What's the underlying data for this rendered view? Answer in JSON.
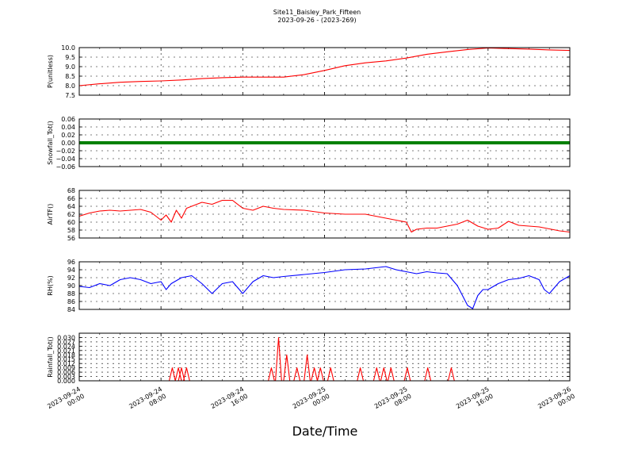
{
  "figure": {
    "title": "Site11_Baisley_Park_Fifteen",
    "subtitle": "2023-09-26 - (2023-269)",
    "xlabel": "Date/Time"
  },
  "x_ticks": [
    "2023-09-24 00:00",
    "2023-09-24 08:00",
    "2023-09-24 16:00",
    "2023-09-25 00:00",
    "2023-09-25 08:00",
    "2023-09-25 16:00",
    "2023-09-26 00:00"
  ],
  "chart_data": [
    {
      "type": "line",
      "ylabel": "P(unitless)",
      "ylim": [
        7.5,
        10.0
      ],
      "yticks": [
        "7.5",
        "8.0",
        "8.5",
        "9.0",
        "9.5",
        "10.0"
      ],
      "grid": true,
      "color": "#ff0000",
      "x_hours": [
        0,
        2,
        4,
        6,
        8,
        10,
        12,
        14,
        16,
        18,
        20,
        22,
        24,
        26,
        28,
        30,
        32,
        34,
        36,
        38,
        40,
        42,
        44,
        46,
        48
      ],
      "values": [
        8.0,
        8.1,
        8.18,
        8.22,
        8.25,
        8.3,
        8.37,
        8.42,
        8.45,
        8.45,
        8.45,
        8.58,
        8.8,
        9.05,
        9.2,
        9.3,
        9.45,
        9.65,
        9.78,
        9.9,
        9.98,
        9.95,
        9.92,
        9.88,
        9.85
      ]
    },
    {
      "type": "line",
      "ylabel": "Snowfall_Tot()",
      "ylim": [
        -0.06,
        0.06
      ],
      "yticks": [
        "−0.06",
        "−0.04",
        "−0.02",
        "0.00",
        "0.02",
        "0.04",
        "0.06"
      ],
      "grid": true,
      "color": "#008000",
      "x_hours": [
        0,
        48
      ],
      "values": [
        0.0,
        0.0
      ]
    },
    {
      "type": "line",
      "ylabel": "AirTF()",
      "ylim": [
        56,
        68
      ],
      "yticks": [
        "56",
        "58",
        "60",
        "62",
        "64",
        "66",
        "68"
      ],
      "grid": true,
      "color": "#ff0000",
      "x_hours": [
        0,
        1,
        2,
        3,
        4,
        5,
        6,
        7,
        8,
        8.5,
        9,
        9.5,
        10,
        10.5,
        11,
        12,
        13,
        14,
        15,
        16,
        17,
        18,
        19,
        20,
        22,
        24,
        26,
        28,
        30,
        31,
        32,
        32.5,
        33,
        34,
        35,
        36,
        37,
        38,
        39,
        40,
        41,
        42,
        43,
        44,
        45,
        46,
        47,
        48
      ],
      "values": [
        61.5,
        62.3,
        62.8,
        63.0,
        62.8,
        63.0,
        63.2,
        62.5,
        60.5,
        61.8,
        60.0,
        63.0,
        61.0,
        63.5,
        64.0,
        65.0,
        64.5,
        65.5,
        65.5,
        63.5,
        63.0,
        64.0,
        63.5,
        63.2,
        63.0,
        62.3,
        62.0,
        62.0,
        61.0,
        60.5,
        60.0,
        57.5,
        58.2,
        58.5,
        58.5,
        59.0,
        59.5,
        60.5,
        59.0,
        58.2,
        58.5,
        60.2,
        59.2,
        59.0,
        58.8,
        58.3,
        57.8,
        57.5
      ]
    },
    {
      "type": "line",
      "ylabel": "RH(%)",
      "ylim": [
        84,
        96
      ],
      "yticks": [
        "84",
        "86",
        "88",
        "90",
        "92",
        "94",
        "96"
      ],
      "grid": true,
      "color": "#0000ff",
      "x_hours": [
        0,
        1,
        2,
        3,
        4,
        5,
        6,
        7,
        8,
        8.5,
        9,
        10,
        11,
        12,
        13,
        14,
        15,
        16,
        17,
        18,
        19,
        20,
        22,
        24,
        26,
        28,
        30,
        31,
        32,
        33,
        34,
        35,
        36,
        37,
        38,
        38.5,
        39,
        39.5,
        40,
        41,
        42,
        43,
        44,
        45,
        45.5,
        46,
        47,
        48
      ],
      "values": [
        89.8,
        89.5,
        90.5,
        90.0,
        91.5,
        92.0,
        91.5,
        90.5,
        91.0,
        89.0,
        90.5,
        92.0,
        92.5,
        90.5,
        88.0,
        90.5,
        91.0,
        88.0,
        91.0,
        92.5,
        92.0,
        92.3,
        92.8,
        93.3,
        94.0,
        94.2,
        94.8,
        94.0,
        93.5,
        93.0,
        93.5,
        93.2,
        93.0,
        90.0,
        85.0,
        84.2,
        87.5,
        89.0,
        89.0,
        90.5,
        91.5,
        91.8,
        92.5,
        91.5,
        89.0,
        88.0,
        91.0,
        92.5
      ]
    },
    {
      "type": "line",
      "ylabel": "Rainfall_Tot()",
      "ylim": [
        0,
        0.033
      ],
      "yticks": [
        "0.000",
        "0.003",
        "0.006",
        "0.009",
        "0.012",
        "0.015",
        "0.018",
        "0.021",
        "0.024",
        "0.027",
        "0.030"
      ],
      "grid": true,
      "color": "#ff0000",
      "x_hours": [
        9.1,
        9.7,
        10.0,
        10.5,
        18.8,
        19.5,
        20.3,
        21.3,
        22.3,
        23.0,
        23.6,
        24.6,
        27.5,
        29.1,
        29.8,
        30.5,
        32.1,
        34.1,
        36.4
      ],
      "values": [
        0.009,
        0.009,
        0.009,
        0.009,
        0.009,
        0.03,
        0.018,
        0.009,
        0.018,
        0.009,
        0.009,
        0.009,
        0.009,
        0.009,
        0.009,
        0.009,
        0.009,
        0.009,
        0.009
      ]
    }
  ]
}
